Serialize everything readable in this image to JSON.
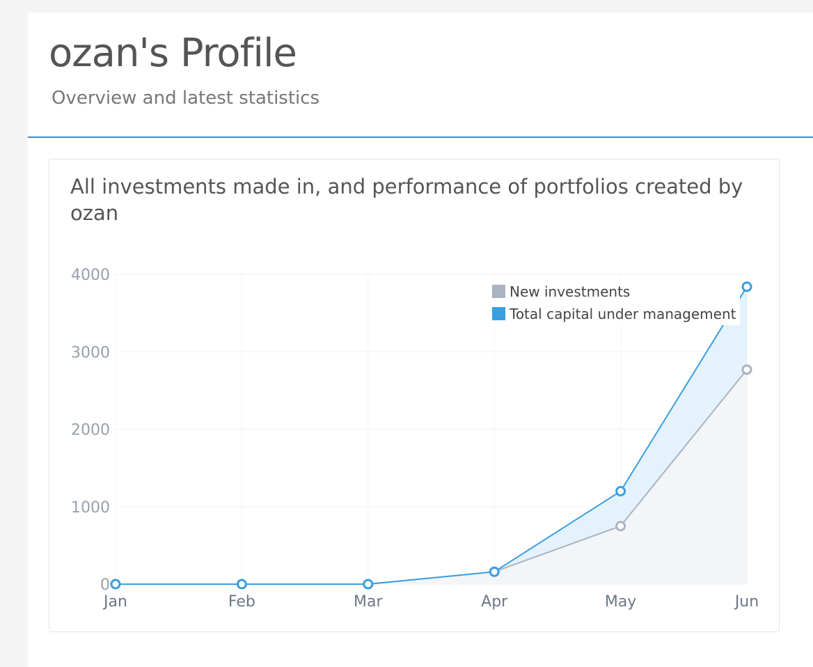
{
  "header": {
    "title": "ozan's Profile",
    "subtitle": "Overview and latest statistics"
  },
  "card": {
    "title": "All investments made in, and performance of portfolios created by ozan"
  },
  "chart_data": {
    "type": "area",
    "categories": [
      "Jan",
      "Feb",
      "Mar",
      "Apr",
      "May",
      "Jun"
    ],
    "y_ticks": [
      "0",
      "1000",
      "2000",
      "3000",
      "4000"
    ],
    "ylim": [
      0,
      4000
    ],
    "grid": true,
    "legend_position": "top-right",
    "series": [
      {
        "name": "New investments",
        "values": [
          0,
          0,
          0,
          160,
          750,
          2770
        ],
        "color": "#a9b3c1",
        "fill": "#f3f5f8"
      },
      {
        "name": "Total capital under management",
        "values": [
          0,
          0,
          0,
          160,
          1200,
          3840
        ],
        "color": "#3a9fe0",
        "fill": "#e4f2fc"
      }
    ]
  }
}
